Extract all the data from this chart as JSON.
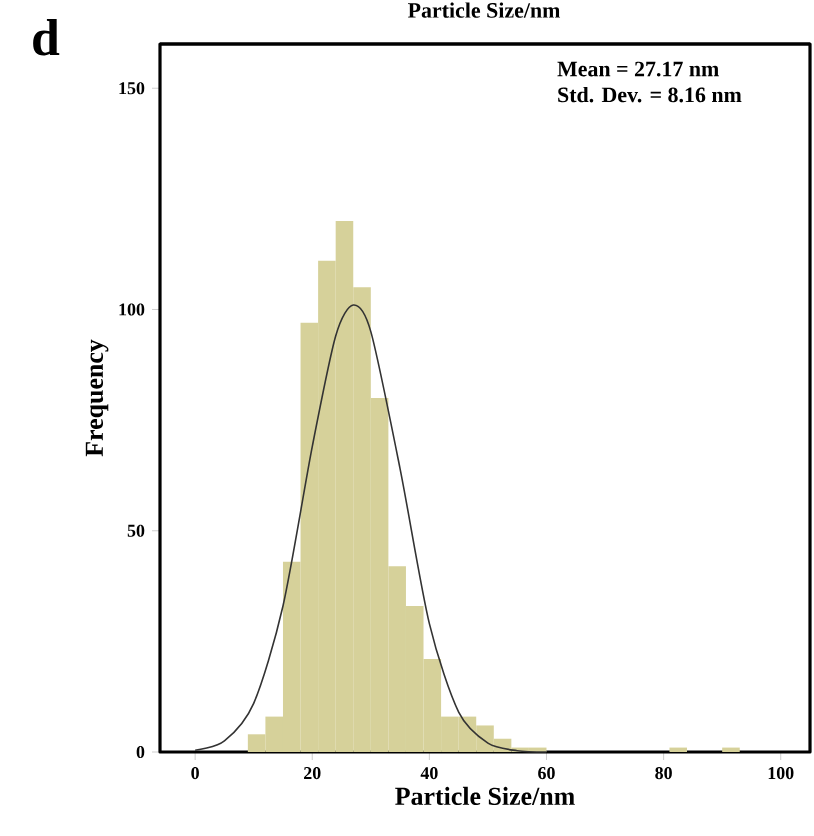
{
  "chart_data": {
    "type": "histogram",
    "title": "d",
    "xlabel": "Particle Size/nm",
    "ylabel": "Frequency",
    "annotations": [
      "Particle Size/nm",
      "Mean = 27.17 nm",
      "Std. Dev. = 8.16 nm"
    ],
    "xlim": [
      -6,
      105
    ],
    "ylim": [
      0,
      160
    ],
    "xticks": [
      0,
      20,
      40,
      60,
      80,
      100
    ],
    "yticks": [
      0,
      50,
      100,
      150
    ],
    "grid": false,
    "series": [
      {
        "type": "histogram",
        "color": "#d6d19a",
        "bins": [
          9,
          12,
          15,
          18,
          21,
          24,
          27,
          30,
          33,
          36,
          39,
          42,
          45,
          48,
          51,
          54,
          57,
          60,
          63,
          66,
          69,
          72,
          75,
          78,
          81,
          84,
          87,
          90,
          93
        ],
        "values": [
          4,
          8,
          43,
          97,
          111,
          120,
          105,
          80,
          42,
          33,
          21,
          8,
          8,
          6,
          3,
          1,
          1,
          0,
          0,
          0,
          0,
          0,
          0,
          0,
          1,
          0,
          0,
          1
        ]
      },
      {
        "type": "line",
        "color": "#333333",
        "x": [
          0,
          5,
          10,
          15,
          20,
          24,
          27,
          30,
          35,
          40,
          45,
          50,
          55,
          60
        ],
        "values": [
          0.4,
          2.5,
          11,
          33,
          69,
          94,
          101,
          95,
          64,
          29,
          9,
          2,
          0.3,
          0
        ]
      }
    ]
  }
}
